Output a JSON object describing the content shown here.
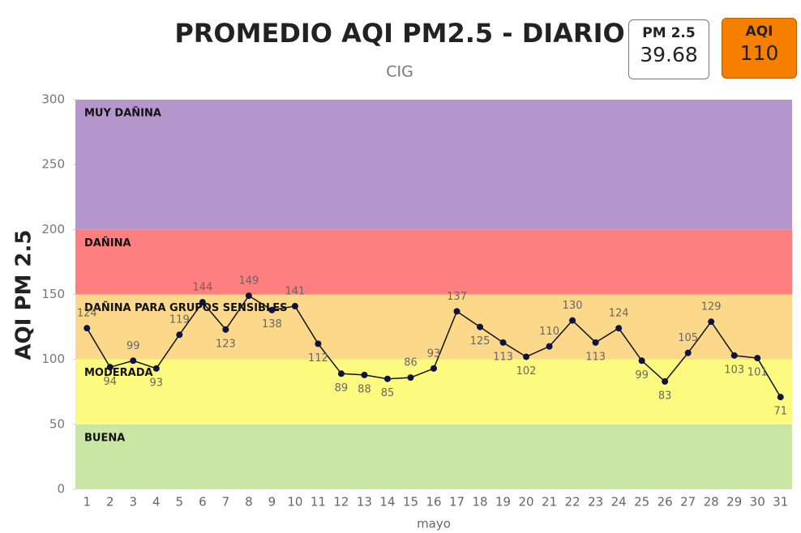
{
  "chart_data": {
    "type": "line",
    "title": "PROMEDIO AQI PM2.5 - DIARIO",
    "subtitle": "CIG",
    "y_label": "AQI PM 2.5",
    "x_label": "mayo",
    "categories": [
      "1",
      "2",
      "3",
      "4",
      "5",
      "6",
      "7",
      "8",
      "9",
      "10",
      "11",
      "12",
      "13",
      "14",
      "15",
      "16",
      "17",
      "18",
      "19",
      "20",
      "21",
      "22",
      "23",
      "24",
      "25",
      "26",
      "27",
      "28",
      "29",
      "30",
      "31"
    ],
    "series": [
      {
        "name": "AQI",
        "color": "#0d1340",
        "values": [
          124,
          94,
          99,
          93,
          119,
          144,
          123,
          149,
          138,
          141,
          112,
          89,
          88,
          85,
          86,
          93,
          137,
          125,
          113,
          102,
          110,
          130,
          113,
          124,
          99,
          83,
          105,
          129,
          103,
          101,
          71
        ]
      }
    ],
    "ylim": [
      0,
      300
    ],
    "yticks": [
      0,
      50,
      100,
      150,
      200,
      250,
      300
    ],
    "bands": [
      {
        "label": "BUENA",
        "from": 0,
        "to": 50,
        "color": "#c9e6a5"
      },
      {
        "label": "MODERADA",
        "from": 50,
        "to": 100,
        "color": "#fdfb7f"
      },
      {
        "label": "DAÑINA PARA GRUPOS SENSIBLES",
        "from": 100,
        "to": 150,
        "color": "#fcd98a"
      },
      {
        "label": "DAÑINA",
        "from": 150,
        "to": 200,
        "color": "#fd7f7f"
      },
      {
        "label": "MUY DAÑINA",
        "from": 200,
        "to": 300,
        "color": "#b597cd"
      }
    ]
  },
  "cards": [
    {
      "label": "PM 2.5",
      "value": "39.68"
    },
    {
      "label": "AQI",
      "value": "110"
    }
  ]
}
